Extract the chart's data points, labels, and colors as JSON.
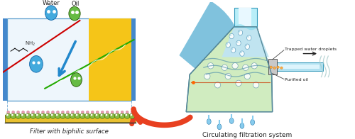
{
  "title_left": "Filter with biphilic surface",
  "title_right": "Circulating filtration system",
  "label_water": "Water",
  "label_oil": "Oil",
  "label_trapped": "Trapped water droplets",
  "label_purified": "Purified oil",
  "bg_color": "#ffffff",
  "box_bg": "#eef6fc",
  "box_border": "#5599cc",
  "yellow_rect": "#f5c518",
  "filter_yellow": "#e8c030",
  "filter_green": "#88bb44",
  "filter_pink": "#e8a0b0",
  "flask_light_green": "#c8e8b0",
  "flask_light_blue": "#a8d8e8",
  "flask_blue_left": "#6ab0d0",
  "tube_cyan_top": "#8ae0f0",
  "tube_cyan_side": "#90dce8",
  "arrow_red": "#e84020",
  "arrow_blue": "#2288cc",
  "line_red": "#cc0000",
  "line_green": "#22aa00",
  "text_color": "#222222",
  "droplet_water_color": "#44aadd",
  "droplet_oil_color": "#66bb44",
  "dark_gray": "#444444",
  "medium_gray": "#888888",
  "light_gray": "#cccccc"
}
